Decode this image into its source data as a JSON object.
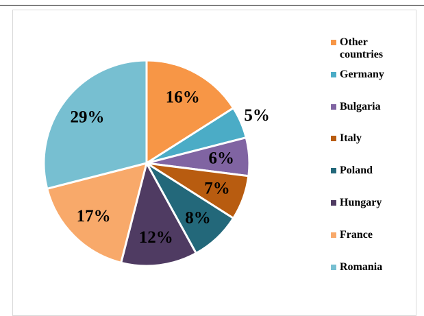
{
  "chart_data": {
    "type": "pie",
    "categories": [
      "Other countries",
      "Germany",
      "Bulgaria",
      "Italy",
      "Poland",
      "Hungary",
      "France",
      "Romania"
    ],
    "values": [
      16,
      5,
      6,
      7,
      8,
      12,
      17,
      29
    ],
    "value_labels": [
      "16%",
      "5%",
      "6%",
      "7%",
      "8%",
      "12%",
      "17%",
      "29%"
    ],
    "colors": [
      "#f79646",
      "#4bacc6",
      "#8064a2",
      "#b85c10",
      "#23687a",
      "#4f3b62",
      "#f8a96a",
      "#77bfd1"
    ],
    "legend": "right"
  }
}
